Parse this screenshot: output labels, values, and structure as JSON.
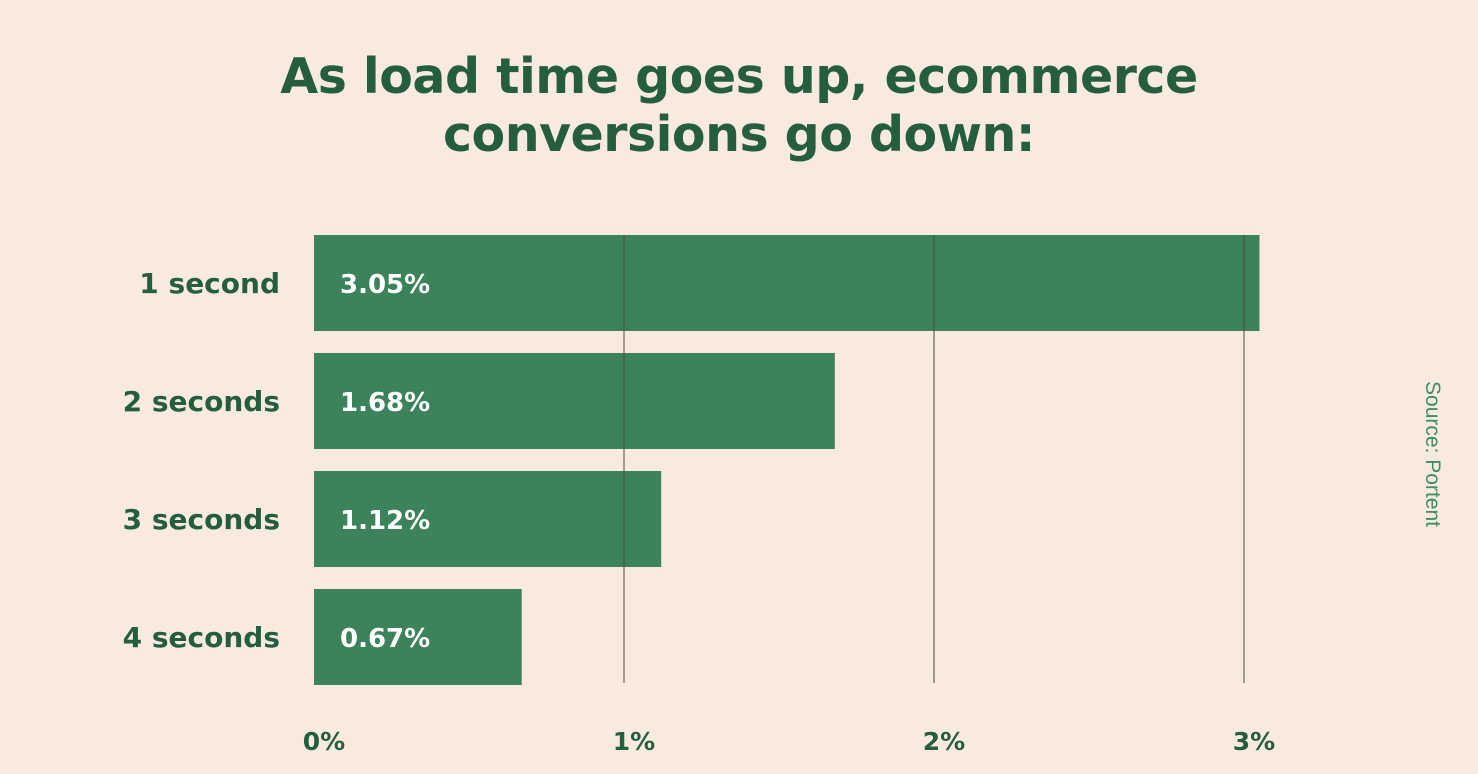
{
  "title_lines": [
    "As load time goes up, ecommerce",
    "conversions go down:"
  ],
  "source": "Source: Portent",
  "colors": {
    "background": "#F8EADF",
    "bar": "#3C825B",
    "title": "#255E3E",
    "grid": "#4A4A3E",
    "bar_label": "#FFFFFF",
    "source": "#3E8E5E"
  },
  "chart_data": {
    "type": "bar",
    "orientation": "horizontal",
    "title": "As load time goes up, ecommerce conversions go down:",
    "categories": [
      "1 second",
      "2 seconds",
      "3 seconds",
      "4 seconds"
    ],
    "values": [
      3.05,
      1.68,
      1.12,
      0.67
    ],
    "data_labels": [
      "3.05%",
      "1.68%",
      "1.12%",
      "0.67%"
    ],
    "x_ticks": [
      0,
      1,
      2,
      3
    ],
    "x_tick_labels": [
      "0%",
      "1%",
      "2%",
      "3%"
    ],
    "xlim": [
      0,
      3.1
    ],
    "grid": true,
    "legend": false
  }
}
